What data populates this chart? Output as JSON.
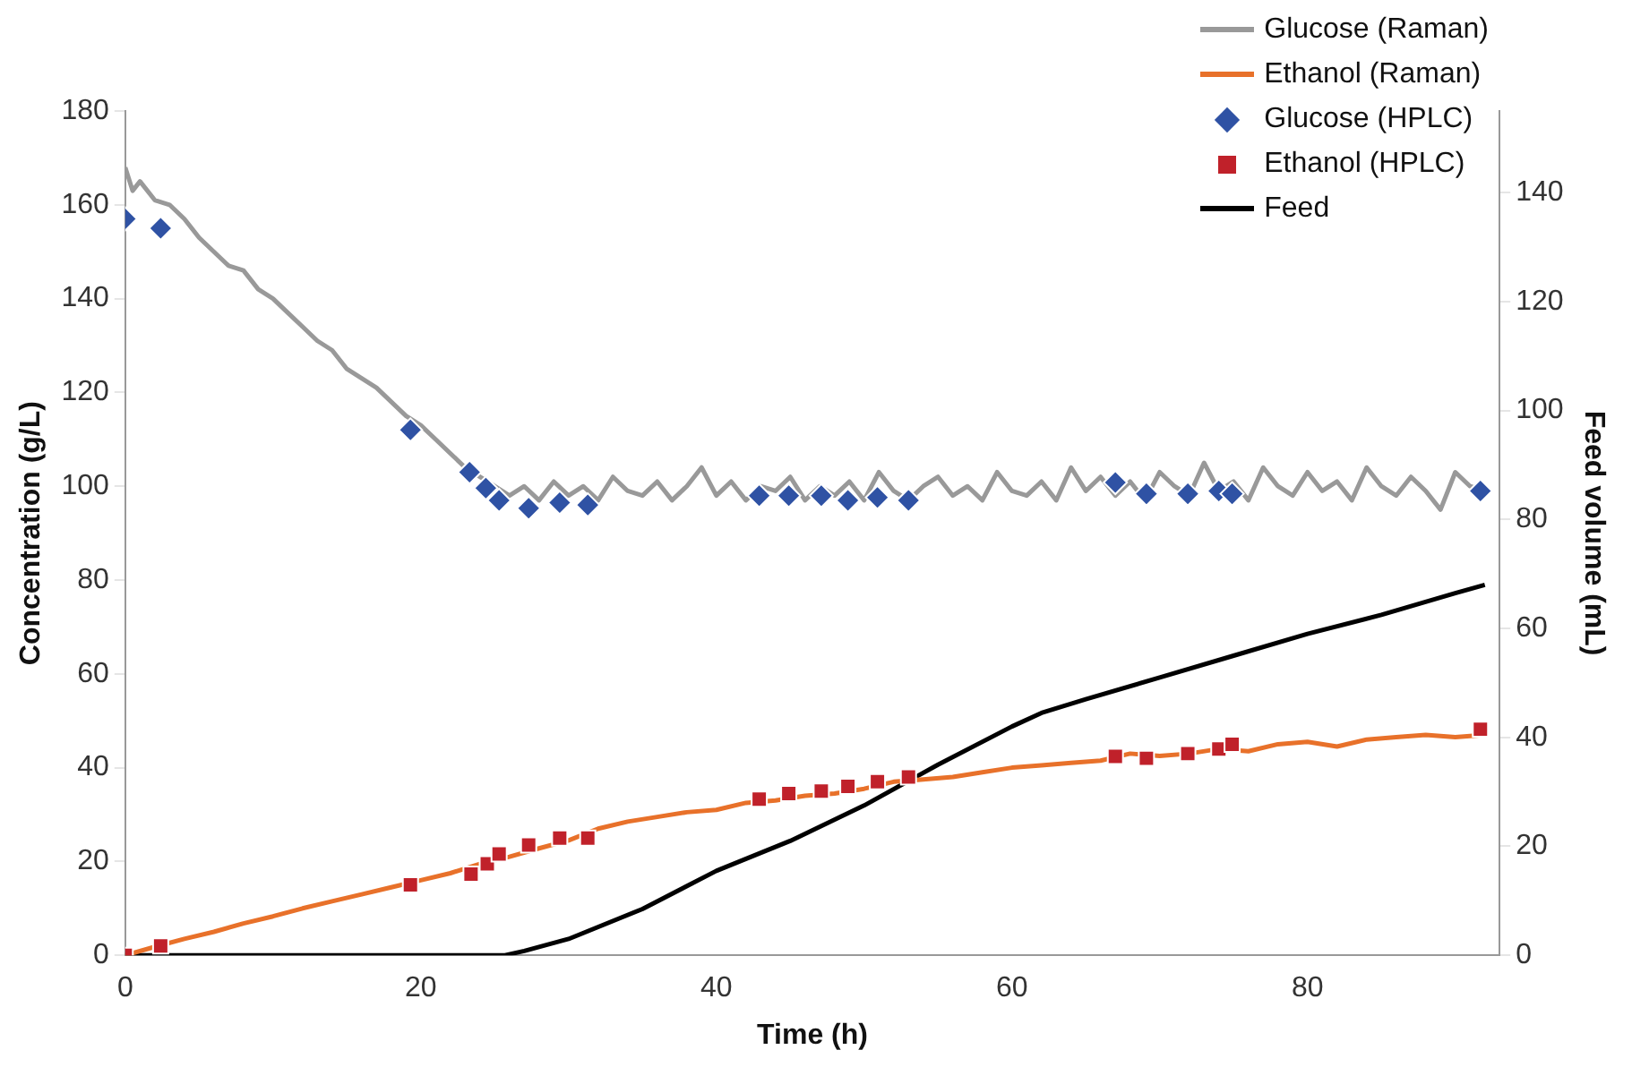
{
  "chart_data": {
    "type": "line",
    "xlabel": "Time (h)",
    "ylabel": "Concentration (g/L)",
    "y2label": "Feed volume (mL)",
    "xlim": [
      0,
      93
    ],
    "xticks": [
      0,
      20,
      40,
      60,
      80
    ],
    "ylim": [
      0,
      180
    ],
    "yticks": [
      0,
      20,
      40,
      60,
      80,
      100,
      120,
      140,
      160,
      180
    ],
    "y2lim": [
      0,
      155
    ],
    "y2ticks": [
      0,
      20,
      40,
      60,
      80,
      100,
      120,
      140
    ],
    "grid": false,
    "legend": "top right",
    "series": [
      {
        "name": "Glucose (Raman)",
        "color": "#999999",
        "marker": "none",
        "x": [
          0,
          0.5,
          1,
          2,
          3,
          4,
          5,
          6,
          7,
          8,
          9,
          10,
          11,
          12,
          13,
          14,
          15,
          16,
          17,
          18,
          19,
          20,
          21,
          22,
          23,
          24,
          25,
          26,
          27,
          28,
          29,
          30,
          31,
          32,
          33,
          34,
          35,
          36,
          37,
          38,
          39,
          40,
          41,
          42,
          43,
          44,
          45,
          46,
          47,
          48,
          49,
          50,
          51,
          52,
          53,
          54,
          55,
          56,
          57,
          58,
          59,
          60,
          61,
          62,
          63,
          64,
          65,
          66,
          67,
          68,
          69,
          70,
          71,
          72,
          73,
          74,
          75,
          76,
          77,
          78,
          79,
          80,
          81,
          82,
          83,
          84,
          85,
          86,
          87,
          88,
          89,
          90,
          91,
          92
        ],
        "values": [
          168,
          163,
          165,
          161,
          160,
          157,
          153,
          150,
          147,
          146,
          142,
          140,
          137,
          134,
          131,
          129,
          125,
          123,
          121,
          118,
          115,
          113,
          110,
          107,
          104,
          102,
          100,
          98,
          100,
          97,
          101,
          98,
          100,
          97,
          102,
          99,
          98,
          101,
          97,
          100,
          104,
          98,
          101,
          97,
          100,
          99,
          102,
          97,
          100,
          98,
          101,
          97,
          103,
          99,
          97,
          100,
          102,
          98,
          100,
          97,
          103,
          99,
          98,
          101,
          97,
          104,
          99,
          102,
          98,
          101,
          97,
          103,
          100,
          98,
          105,
          99,
          101,
          97,
          104,
          100,
          98,
          103,
          99,
          101,
          97,
          104,
          100,
          98,
          102,
          99,
          95,
          103,
          100,
          99
        ]
      },
      {
        "name": "Ethanol (Raman)",
        "color": "#e8712a",
        "marker": "none",
        "x": [
          0,
          2,
          4,
          6,
          8,
          10,
          12,
          14,
          16,
          18,
          20,
          22,
          24,
          26,
          28,
          30,
          32,
          34,
          36,
          38,
          40,
          42,
          44,
          46,
          48,
          50,
          52,
          54,
          56,
          58,
          60,
          62,
          64,
          66,
          68,
          70,
          72,
          74,
          76,
          78,
          80,
          82,
          84,
          86,
          88,
          90,
          92
        ],
        "values": [
          0,
          1.8,
          3.5,
          5,
          6.8,
          8.3,
          10,
          11.5,
          13,
          14.5,
          16,
          17.5,
          19.5,
          21,
          22.8,
          24.5,
          27,
          28.5,
          29.5,
          30.5,
          31,
          32.5,
          33,
          34,
          34.5,
          35.5,
          37,
          37.5,
          38,
          39,
          40,
          40.5,
          41,
          41.5,
          43,
          42.5,
          43,
          44,
          43.5,
          45,
          45.5,
          44.5,
          46,
          46.5,
          47,
          46.5,
          47
        ]
      },
      {
        "name": "Glucose (HPLC)",
        "type": "scatter",
        "color": "#2f52a4",
        "marker": "diamond",
        "x": [
          0,
          2.4,
          19.3,
          23.3,
          24.4,
          25.3,
          27.3,
          29.4,
          31.3,
          42.9,
          44.9,
          47.1,
          48.9,
          50.9,
          53,
          67,
          69.1,
          71.9,
          74,
          74.9,
          91.7
        ],
        "values": [
          157,
          155,
          112,
          103,
          99.6,
          97,
          95.3,
          96.5,
          96,
          98,
          98,
          98,
          97,
          97.6,
          97,
          100.8,
          98.4,
          98.4,
          99,
          98.4,
          99
        ]
      },
      {
        "name": "Ethanol (HPLC)",
        "type": "scatter",
        "color": "#c0212a",
        "marker": "square",
        "x": [
          0,
          2.4,
          19.3,
          23.4,
          24.5,
          25.3,
          27.3,
          29.4,
          31.3,
          42.9,
          44.9,
          47.1,
          48.9,
          50.9,
          53,
          67,
          69.1,
          71.9,
          74,
          74.9,
          91.7
        ],
        "values": [
          0,
          2,
          15,
          17.3,
          19.5,
          21.6,
          23.5,
          25,
          25,
          33.3,
          34.5,
          35,
          36,
          37,
          38,
          42.4,
          42,
          43,
          44,
          45,
          48.2
        ]
      },
      {
        "name": "Feed",
        "color": "#000000",
        "marker": "none",
        "axis": "y2",
        "x": [
          0,
          25.7,
          27,
          30,
          35,
          40,
          45,
          50,
          55,
          60,
          62,
          65,
          70,
          75,
          80,
          85,
          90,
          92
        ],
        "values": [
          0,
          0,
          0.8,
          3,
          8.5,
          15.5,
          21,
          27.5,
          35,
          42,
          44.5,
          47,
          51,
          55,
          59,
          62.5,
          66.5,
          68
        ]
      }
    ]
  }
}
